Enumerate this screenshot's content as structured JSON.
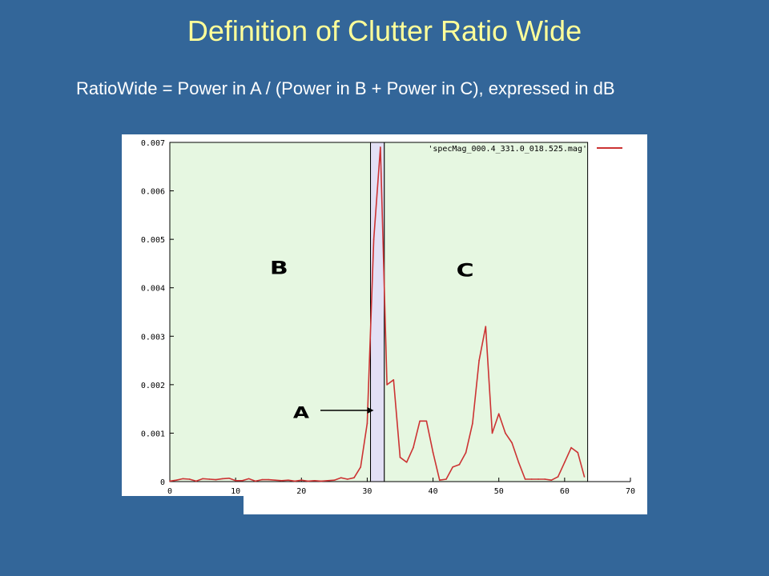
{
  "slide": {
    "title": "Definition of Clutter Ratio Wide",
    "subtitle": "RatioWide = Power in A / (Power in B + Power in C), expressed in dB"
  },
  "colors": {
    "background": "#336699",
    "title": "#ffff99",
    "subtitle": "#ffffff",
    "series": "#cc3333",
    "region_bc": "#e6f7e1",
    "region_a": "#e3e0f5"
  },
  "chart_data": {
    "type": "line",
    "xlim": [
      0,
      70
    ],
    "ylim": [
      0,
      0.007
    ],
    "x_ticks": [
      0,
      10,
      20,
      30,
      40,
      50,
      60,
      70
    ],
    "y_ticks": [
      0,
      0.001,
      0.002,
      0.003,
      0.004,
      0.005,
      0.006,
      0.007
    ],
    "y_tick_labels": [
      "0",
      "0.001",
      "0.002",
      "0.003",
      "0.004",
      "0.005",
      "0.006",
      "0.007"
    ],
    "grid": false,
    "legend_position": "top-right",
    "series": [
      {
        "name": "'specMag_000.4_331.0_018.525.mag'",
        "x": [
          0,
          1,
          2,
          3,
          4,
          5,
          6,
          7,
          8,
          9,
          10,
          11,
          12,
          13,
          14,
          15,
          16,
          17,
          18,
          19,
          20,
          21,
          22,
          23,
          24,
          25,
          26,
          27,
          28,
          29,
          30,
          31,
          32,
          33,
          34,
          35,
          36,
          37,
          38,
          39,
          40,
          41,
          42,
          43,
          44,
          45,
          46,
          47,
          48,
          49,
          50,
          51,
          52,
          53,
          54,
          55,
          56,
          57,
          58,
          59,
          60,
          61,
          62,
          63
        ],
        "y": [
          1e-05,
          3e-05,
          6e-05,
          5e-05,
          1e-05,
          6e-05,
          5e-05,
          4e-05,
          6e-05,
          7e-05,
          2e-05,
          2e-05,
          6e-05,
          1e-05,
          4e-05,
          4e-05,
          3e-05,
          2e-05,
          3e-05,
          1e-05,
          3e-05,
          1e-05,
          2e-05,
          1e-05,
          2e-05,
          3e-05,
          8e-05,
          5e-05,
          8e-05,
          0.0003,
          0.0012,
          0.005,
          0.0069,
          0.002,
          0.0021,
          0.0005,
          0.0004,
          0.0007,
          0.00125,
          0.00125,
          0.0006,
          3e-05,
          5e-05,
          0.0003,
          0.00035,
          0.0006,
          0.0012,
          0.0025,
          0.0032,
          0.001,
          0.0014,
          0.001,
          0.0008,
          0.0004,
          5e-05,
          5e-05,
          5e-05,
          5e-05,
          3e-05,
          0.0001,
          0.0004,
          0.0007,
          0.0006,
          0.0001
        ]
      }
    ],
    "regions": [
      {
        "label": "B",
        "x_range": [
          0,
          30.5
        ]
      },
      {
        "label": "A",
        "x_range": [
          30.5,
          32.6
        ]
      },
      {
        "label": "C",
        "x_range": [
          32.6,
          63.5
        ]
      }
    ],
    "annotations": [
      {
        "text": "A",
        "arrow_to_region": "A"
      }
    ]
  }
}
